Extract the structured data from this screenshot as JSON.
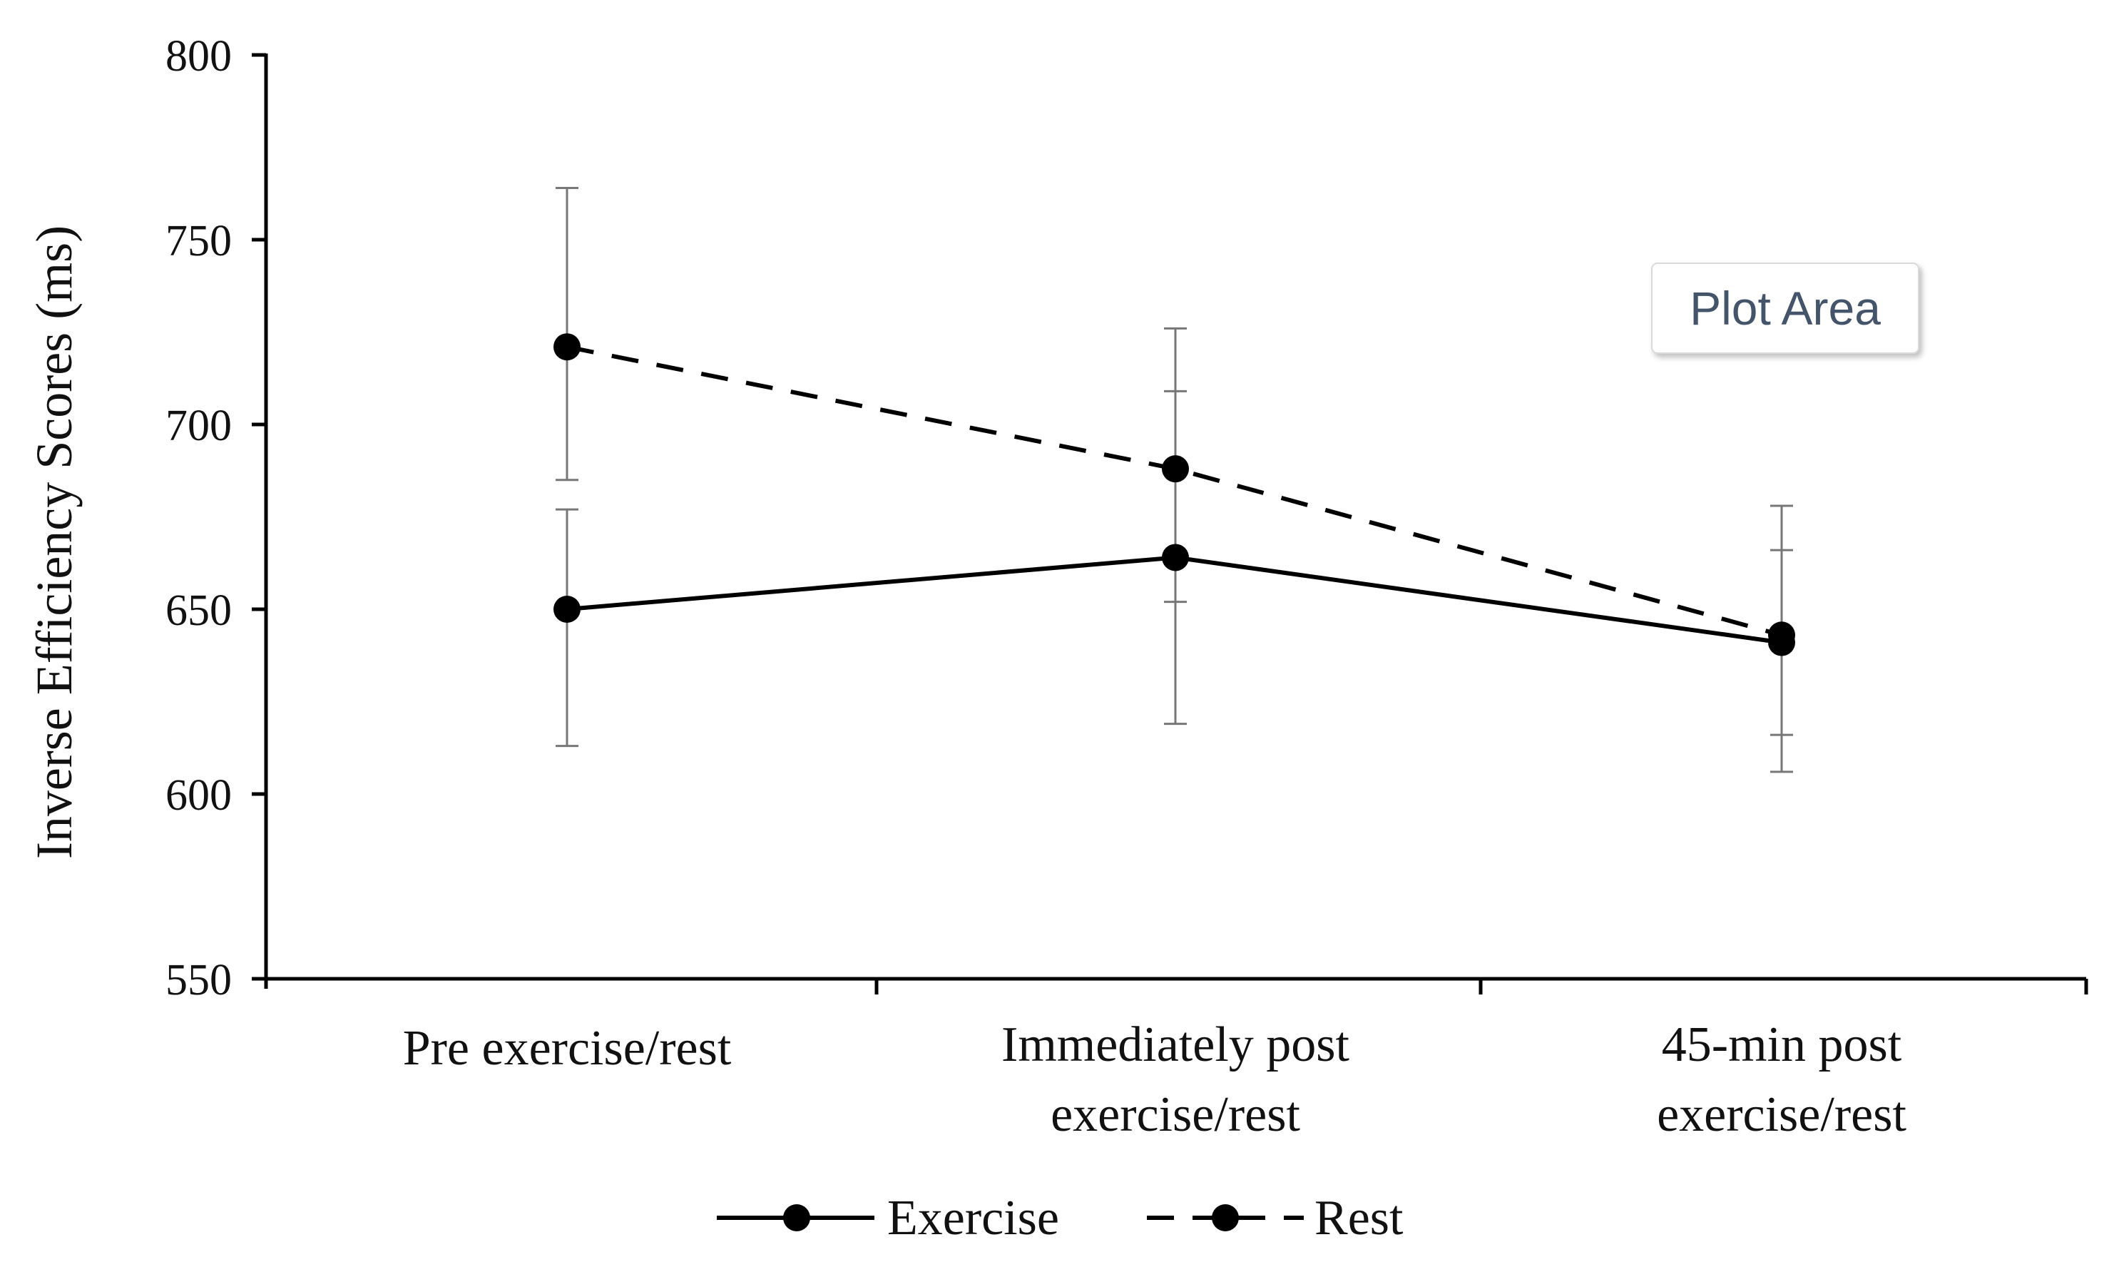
{
  "chart_data": {
    "type": "line",
    "title": "",
    "xlabel": "",
    "ylabel": "Inverse Efficiency Scores (ms)",
    "ylim": [
      550,
      800
    ],
    "yticks": [
      550,
      600,
      650,
      700,
      750,
      800
    ],
    "ytick_labels": [
      "550",
      "600",
      "650",
      "700",
      "750",
      "800"
    ],
    "categories": [
      [
        "Pre exercise/rest"
      ],
      [
        "Immediately post",
        "exercise/rest"
      ],
      [
        "45-min post",
        "exercise/rest"
      ]
    ],
    "series": [
      {
        "name": "Exercise",
        "line_style": "solid",
        "marker": "circle",
        "color": "#000000",
        "values": [
          650,
          664,
          641
        ],
        "error_low": [
          613,
          619,
          606
        ],
        "error_high": [
          677,
          709,
          666
        ]
      },
      {
        "name": "Rest",
        "line_style": "dashed",
        "marker": "circle",
        "color": "#000000",
        "values": [
          721,
          688,
          643
        ],
        "error_low": [
          685,
          652,
          616
        ],
        "error_high": [
          764,
          726,
          678
        ]
      }
    ],
    "legend": {
      "position": "bottom-center",
      "entries": [
        "Exercise",
        "Rest"
      ]
    },
    "grid": false
  },
  "tooltip": {
    "text": "Plot Area"
  },
  "colors": {
    "axis": "#000000",
    "error_bar": "#777777",
    "tooltip_border": "#d9d9d9",
    "tooltip_text": "#44546a"
  }
}
